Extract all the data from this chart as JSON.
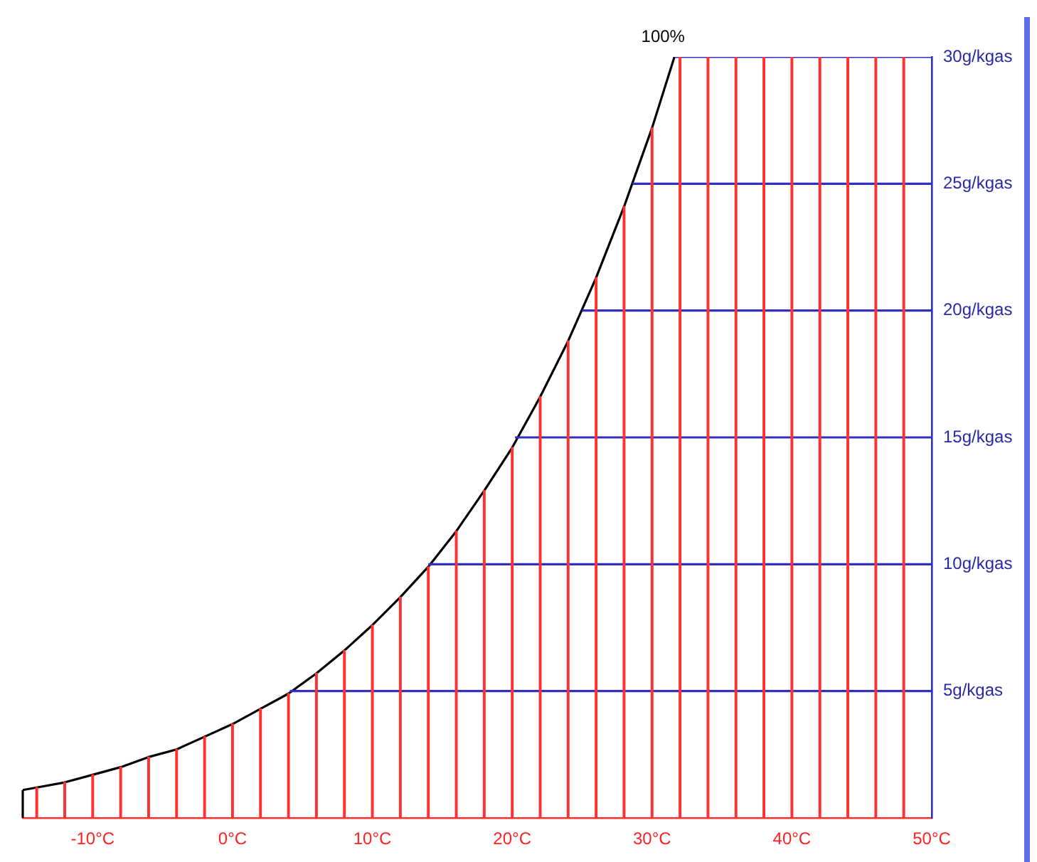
{
  "chart_data": {
    "type": "line",
    "series": [
      {
        "type": "bar",
        "color": "#ff3030",
        "x": [
          -14,
          -12,
          -10,
          -8,
          -6,
          -4,
          -2,
          0,
          2,
          4,
          6,
          8,
          10,
          12,
          14,
          16,
          18,
          20,
          22,
          24,
          26,
          28,
          30,
          32,
          34,
          36,
          38,
          40,
          42,
          44,
          46,
          48
        ],
        "values": [
          1.2,
          1.4,
          1.7,
          2.0,
          2.4,
          2.7,
          3.2,
          3.7,
          4.3,
          4.9,
          5.7,
          6.6,
          7.6,
          8.7,
          9.9,
          11.3,
          12.9,
          14.6,
          16.6,
          18.8,
          21.3,
          24.1,
          27.2,
          30,
          30,
          30,
          30,
          30,
          30,
          30,
          30,
          30
        ]
      },
      {
        "color": "#3030c0",
        "x": [
          4.1,
          50
        ],
        "values": [
          5,
          5
        ]
      },
      {
        "color": "#3030c0",
        "x": [
          14,
          50
        ],
        "values": [
          10,
          10
        ]
      },
      {
        "color": "#3030c0",
        "x": [
          20.2,
          50
        ],
        "values": [
          15,
          15
        ]
      },
      {
        "color": "#3030c0",
        "x": [
          25,
          50
        ],
        "values": [
          20,
          20
        ]
      },
      {
        "color": "#3030c0",
        "x": [
          28.6,
          50
        ],
        "values": [
          25,
          25
        ]
      },
      {
        "color": "#3030c0",
        "x": [
          31.6,
          50
        ],
        "values": [
          30,
          30
        ]
      },
      {
        "name": "100%",
        "color": "#000000",
        "x": [
          -15,
          -14,
          -12,
          -10,
          -8,
          -6,
          -4,
          -2,
          0,
          2,
          4,
          6,
          8,
          10,
          12,
          14,
          16,
          18,
          20,
          22,
          24,
          26,
          28,
          30,
          31.6
        ],
        "values": [
          1.1,
          1.2,
          1.4,
          1.7,
          2.0,
          2.4,
          2.7,
          3.2,
          3.7,
          4.3,
          4.9,
          5.7,
          6.6,
          7.6,
          8.7,
          9.9,
          11.3,
          12.9,
          14.6,
          16.6,
          18.8,
          21.3,
          24.1,
          27.2,
          30
        ]
      }
    ],
    "xlim": [
      -15,
      50
    ],
    "xticks": [
      {
        "value": -10,
        "label": "-10°C"
      },
      {
        "value": 0,
        "label": "0°C"
      },
      {
        "value": 10,
        "label": "10°C"
      },
      {
        "value": 20,
        "label": "20°C"
      },
      {
        "value": 30,
        "label": "30°C"
      },
      {
        "value": 40,
        "label": "40°C"
      },
      {
        "value": 50,
        "label": "50°C"
      }
    ],
    "ylim": [
      0,
      30
    ],
    "yticks": [
      {
        "value": 5,
        "label": "5g/kgas"
      },
      {
        "value": 10,
        "label": "10g/kgas"
      },
      {
        "value": 15,
        "label": "15g/kgas"
      },
      {
        "value": 20,
        "label": "20g/kgas"
      },
      {
        "value": 25,
        "label": "25g/kgas"
      },
      {
        "value": 30,
        "label": "30g/kgas"
      }
    ],
    "legend": false,
    "marker": "none",
    "line_style": "solid"
  }
}
